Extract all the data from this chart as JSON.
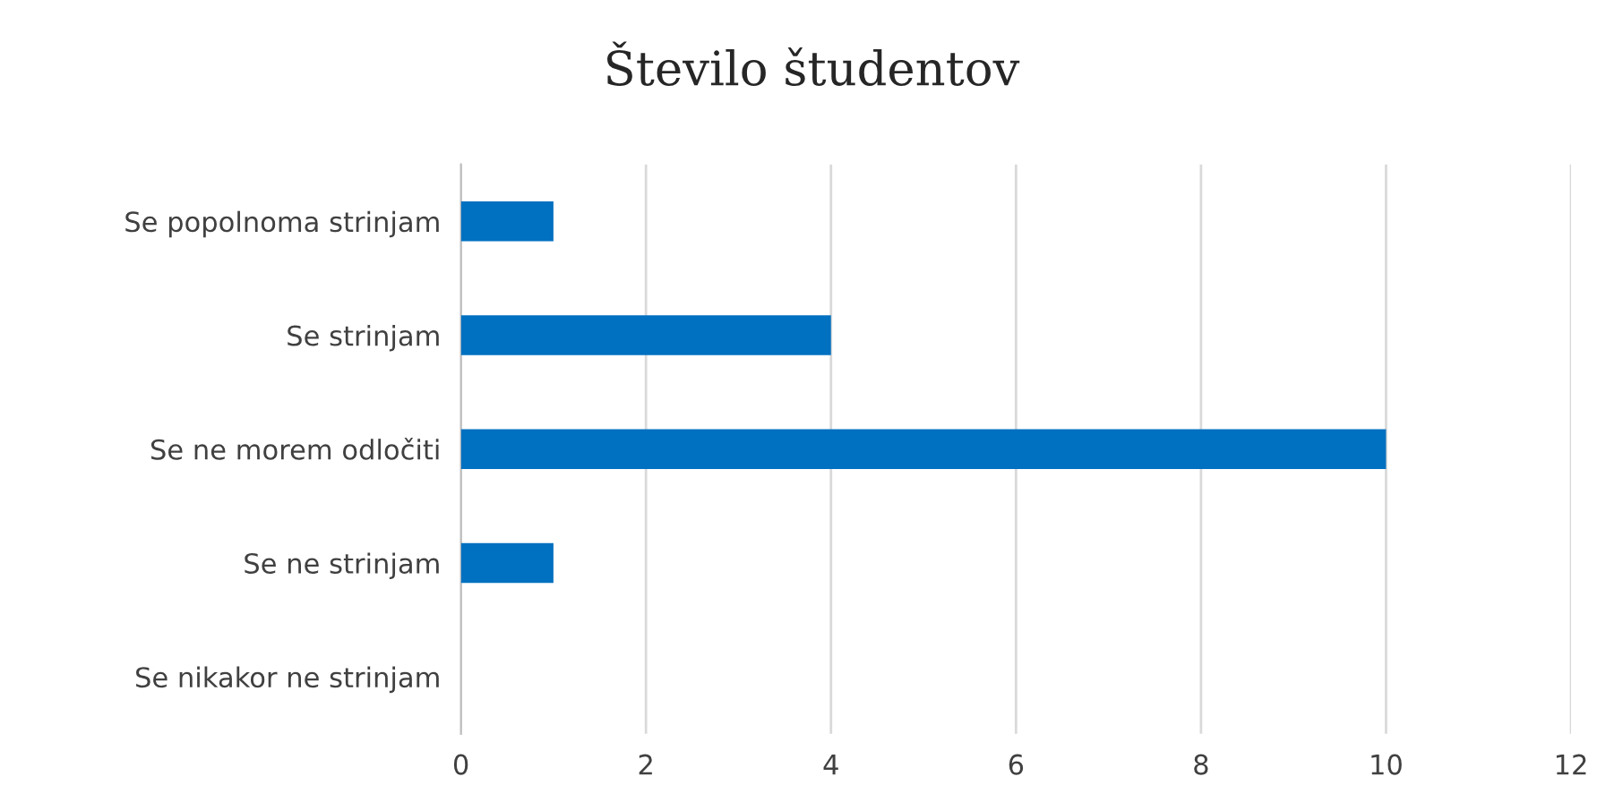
{
  "chart_data": {
    "type": "bar",
    "orientation": "horizontal",
    "title": "Število študentov",
    "categories": [
      "Se popolnoma strinjam",
      "Se strinjam",
      "Se ne morem odločiti",
      "Se ne strinjam",
      "Se nikakor ne strinjam"
    ],
    "values": [
      1,
      4,
      10,
      1,
      0
    ],
    "color": "#0070c0",
    "xlim": [
      0,
      12
    ],
    "xticks": [
      0,
      2,
      4,
      6,
      8,
      10,
      12
    ],
    "grid": "x",
    "legend": false
  }
}
